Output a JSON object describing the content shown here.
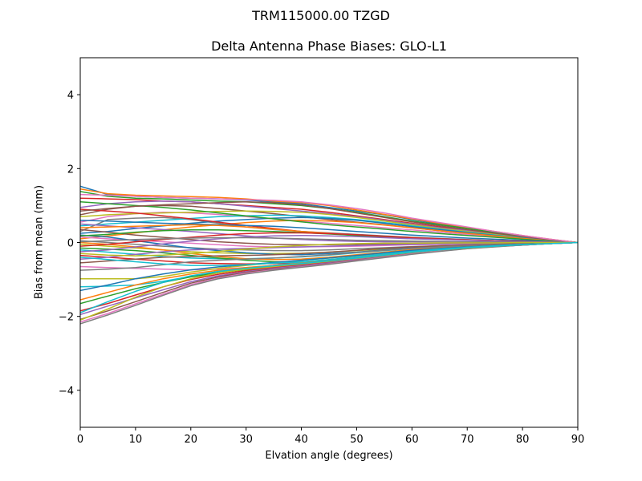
{
  "figure": {
    "suptitle": "TRM115000.00    TZGD"
  },
  "chart_data": {
    "type": "line",
    "title": "Delta Antenna Phase Biases: GLO-L1",
    "suptitle": "TRM115000.00    TZGD",
    "xlabel": "Elvation angle (degrees)",
    "ylabel": "Bias from mean (mm)",
    "xlim": [
      0,
      90
    ],
    "ylim": [
      -5,
      5
    ],
    "xticks": [
      0,
      10,
      20,
      30,
      40,
      50,
      60,
      70,
      80,
      90
    ],
    "yticks": [
      -4,
      -2,
      0,
      2,
      4
    ],
    "ytick_labels": [
      "−4",
      "−2",
      "0",
      "2",
      "4"
    ],
    "grid": false,
    "legend": null,
    "colors": [
      "#1f77b4",
      "#ff7f0e",
      "#2ca02c",
      "#d62728",
      "#9467bd",
      "#8c564b",
      "#e377c2",
      "#7f7f7f",
      "#bcbd22",
      "#17becf"
    ],
    "x": [
      0,
      5,
      10,
      15,
      20,
      25,
      30,
      35,
      40,
      45,
      50,
      55,
      60,
      65,
      70,
      75,
      80,
      85,
      90
    ],
    "series": [
      {
        "name": "s1",
        "values": [
          1.52,
          1.3,
          1.25,
          1.22,
          1.2,
          1.18,
          1.15,
          1.1,
          1.05,
          0.95,
          0.85,
          0.75,
          0.62,
          0.5,
          0.4,
          0.28,
          0.18,
          0.08,
          0.0
        ]
      },
      {
        "name": "s2",
        "values": [
          1.45,
          1.32,
          1.28,
          1.26,
          1.24,
          1.22,
          1.18,
          1.12,
          1.08,
          1.0,
          0.88,
          0.76,
          0.64,
          0.52,
          0.41,
          0.3,
          0.19,
          0.09,
          0.0
        ]
      },
      {
        "name": "s3",
        "values": [
          1.38,
          1.25,
          1.2,
          1.18,
          1.15,
          1.12,
          1.1,
          1.05,
          1.0,
          0.92,
          0.82,
          0.7,
          0.58,
          0.48,
          0.38,
          0.27,
          0.17,
          0.08,
          0.0
        ]
      },
      {
        "name": "s4",
        "values": [
          1.2,
          1.18,
          1.16,
          1.12,
          1.1,
          1.05,
          1.0,
          0.95,
          0.9,
          0.82,
          0.72,
          0.62,
          0.52,
          0.42,
          0.33,
          0.24,
          0.15,
          0.07,
          0.0
        ]
      },
      {
        "name": "s5",
        "values": [
          0.95,
          1.05,
          1.1,
          1.12,
          1.1,
          1.05,
          0.98,
          0.92,
          0.85,
          0.78,
          0.7,
          0.6,
          0.5,
          0.4,
          0.32,
          0.23,
          0.15,
          0.07,
          0.0
        ]
      },
      {
        "name": "s6",
        "values": [
          0.75,
          0.9,
          0.98,
          1.0,
          0.98,
          0.92,
          0.85,
          0.78,
          0.7,
          0.62,
          0.55,
          0.48,
          0.4,
          0.32,
          0.25,
          0.18,
          0.12,
          0.05,
          0.0
        ]
      },
      {
        "name": "s7",
        "values": [
          0.55,
          0.7,
          0.78,
          0.82,
          0.8,
          0.76,
          0.7,
          0.64,
          0.58,
          0.52,
          0.46,
          0.4,
          0.34,
          0.28,
          0.22,
          0.16,
          0.1,
          0.05,
          0.0
        ]
      },
      {
        "name": "s8",
        "values": [
          0.3,
          0.62,
          0.66,
          0.68,
          0.62,
          0.52,
          0.42,
          0.35,
          0.3,
          0.26,
          0.22,
          0.18,
          0.14,
          0.11,
          0.08,
          0.05,
          0.03,
          0.01,
          0.0
        ]
      },
      {
        "name": "s9",
        "values": [
          0.7,
          0.75,
          0.78,
          0.8,
          0.82,
          0.84,
          0.85,
          0.84,
          0.82,
          0.76,
          0.68,
          0.58,
          0.48,
          0.38,
          0.3,
          0.22,
          0.14,
          0.06,
          0.0
        ]
      },
      {
        "name": "s10",
        "values": [
          0.45,
          0.5,
          0.55,
          0.6,
          0.65,
          0.7,
          0.72,
          0.74,
          0.72,
          0.68,
          0.62,
          0.54,
          0.45,
          0.36,
          0.28,
          0.2,
          0.13,
          0.06,
          0.0
        ]
      },
      {
        "name": "s11",
        "values": [
          0.25,
          0.3,
          0.38,
          0.45,
          0.52,
          0.58,
          0.62,
          0.66,
          0.68,
          0.65,
          0.6,
          0.52,
          0.43,
          0.35,
          0.27,
          0.19,
          0.12,
          0.06,
          0.0
        ]
      },
      {
        "name": "s12",
        "values": [
          0.1,
          0.18,
          0.26,
          0.34,
          0.42,
          0.48,
          0.54,
          0.58,
          0.6,
          0.58,
          0.54,
          0.47,
          0.4,
          0.32,
          0.25,
          0.18,
          0.11,
          0.05,
          0.0
        ]
      },
      {
        "name": "s13",
        "values": [
          1.1,
          1.05,
          1.0,
          0.95,
          0.88,
          0.8,
          0.72,
          0.64,
          0.56,
          0.48,
          0.42,
          0.36,
          0.3,
          0.24,
          0.19,
          0.14,
          0.09,
          0.04,
          0.0
        ]
      },
      {
        "name": "s14",
        "values": [
          0.9,
          0.85,
          0.8,
          0.72,
          0.64,
          0.55,
          0.46,
          0.38,
          0.3,
          0.24,
          0.19,
          0.15,
          0.12,
          0.09,
          0.07,
          0.05,
          0.03,
          0.01,
          0.0
        ]
      },
      {
        "name": "s15",
        "values": [
          0.5,
          0.45,
          0.4,
          0.35,
          0.3,
          0.24,
          0.18,
          0.12,
          0.08,
          0.05,
          0.03,
          0.02,
          0.02,
          0.02,
          0.01,
          0.01,
          0.01,
          0.0,
          0.0
        ]
      },
      {
        "name": "s16",
        "values": [
          0.35,
          0.28,
          0.2,
          0.14,
          0.08,
          0.02,
          -0.02,
          -0.05,
          -0.06,
          -0.06,
          -0.05,
          -0.04,
          -0.03,
          -0.02,
          -0.02,
          -0.01,
          -0.01,
          0.0,
          0.0
        ]
      },
      {
        "name": "s17",
        "values": [
          0.15,
          0.1,
          0.06,
          0.02,
          -0.02,
          -0.06,
          -0.1,
          -0.12,
          -0.12,
          -0.11,
          -0.1,
          -0.08,
          -0.06,
          -0.05,
          -0.04,
          -0.03,
          -0.02,
          -0.01,
          0.0
        ]
      },
      {
        "name": "s18",
        "values": [
          0.05,
          0.0,
          -0.05,
          -0.1,
          -0.14,
          -0.18,
          -0.2,
          -0.22,
          -0.22,
          -0.2,
          -0.17,
          -0.14,
          -0.11,
          -0.09,
          -0.07,
          -0.05,
          -0.03,
          -0.01,
          0.0
        ]
      },
      {
        "name": "s19",
        "values": [
          -0.05,
          -0.1,
          -0.15,
          -0.2,
          -0.25,
          -0.28,
          -0.3,
          -0.3,
          -0.29,
          -0.26,
          -0.22,
          -0.18,
          -0.14,
          -0.11,
          -0.08,
          -0.06,
          -0.04,
          -0.02,
          0.0
        ]
      },
      {
        "name": "s20",
        "values": [
          -0.2,
          -0.26,
          -0.32,
          -0.38,
          -0.42,
          -0.44,
          -0.44,
          -0.42,
          -0.39,
          -0.34,
          -0.28,
          -0.22,
          -0.17,
          -0.13,
          -0.1,
          -0.07,
          -0.04,
          -0.02,
          0.0
        ]
      },
      {
        "name": "s21",
        "values": [
          0.2,
          0.15,
          0.05,
          -0.05,
          -0.15,
          -0.22,
          -0.28,
          -0.32,
          -0.33,
          -0.3,
          -0.26,
          -0.2,
          -0.15,
          -0.12,
          -0.09,
          -0.06,
          -0.04,
          -0.02,
          0.0
        ]
      },
      {
        "name": "s22",
        "values": [
          0.0,
          -0.05,
          -0.12,
          -0.2,
          -0.3,
          -0.38,
          -0.44,
          -0.46,
          -0.45,
          -0.4,
          -0.33,
          -0.26,
          -0.19,
          -0.15,
          -0.11,
          -0.08,
          -0.05,
          -0.02,
          0.0
        ]
      },
      {
        "name": "s23",
        "values": [
          -0.15,
          -0.18,
          -0.22,
          -0.28,
          -0.35,
          -0.42,
          -0.48,
          -0.52,
          -0.52,
          -0.48,
          -0.4,
          -0.31,
          -0.23,
          -0.17,
          -0.13,
          -0.09,
          -0.06,
          -0.03,
          0.0
        ]
      },
      {
        "name": "s24",
        "values": [
          -0.35,
          -0.4,
          -0.45,
          -0.5,
          -0.55,
          -0.57,
          -0.58,
          -0.57,
          -0.55,
          -0.5,
          -0.42,
          -0.33,
          -0.25,
          -0.19,
          -0.14,
          -0.1,
          -0.06,
          -0.03,
          0.0
        ]
      },
      {
        "name": "s25",
        "values": [
          -0.45,
          -0.4,
          -0.32,
          -0.25,
          -0.2,
          -0.18,
          -0.16,
          -0.14,
          -0.12,
          -0.1,
          -0.08,
          -0.06,
          -0.05,
          -0.04,
          -0.03,
          -0.02,
          -0.01,
          0.0,
          0.0
        ]
      },
      {
        "name": "s26",
        "values": [
          -0.55,
          -0.5,
          -0.45,
          -0.4,
          -0.38,
          -0.36,
          -0.35,
          -0.33,
          -0.3,
          -0.26,
          -0.21,
          -0.16,
          -0.12,
          -0.09,
          -0.07,
          -0.05,
          -0.03,
          -0.01,
          0.0
        ]
      },
      {
        "name": "s27",
        "values": [
          -0.65,
          -0.68,
          -0.7,
          -0.72,
          -0.74,
          -0.72,
          -0.68,
          -0.62,
          -0.56,
          -0.48,
          -0.4,
          -0.31,
          -0.23,
          -0.17,
          -0.13,
          -0.09,
          -0.06,
          -0.03,
          0.0
        ]
      },
      {
        "name": "s28",
        "values": [
          -0.75,
          -0.72,
          -0.68,
          -0.6,
          -0.52,
          -0.48,
          -0.45,
          -0.42,
          -0.38,
          -0.33,
          -0.27,
          -0.21,
          -0.16,
          -0.12,
          -0.09,
          -0.06,
          -0.04,
          -0.02,
          0.0
        ]
      },
      {
        "name": "s29",
        "values": [
          -0.98,
          -0.98,
          -0.98,
          -0.92,
          -0.8,
          -0.7,
          -0.62,
          -0.55,
          -0.48,
          -0.42,
          -0.36,
          -0.29,
          -0.22,
          -0.16,
          -0.12,
          -0.08,
          -0.05,
          -0.02,
          0.0
        ]
      },
      {
        "name": "s30",
        "values": [
          -1.2,
          -1.18,
          -1.15,
          -1.05,
          -0.92,
          -0.8,
          -0.7,
          -0.62,
          -0.54,
          -0.47,
          -0.4,
          -0.32,
          -0.24,
          -0.18,
          -0.13,
          -0.09,
          -0.06,
          -0.03,
          0.0
        ]
      },
      {
        "name": "s31",
        "values": [
          -1.3,
          -1.15,
          -0.98,
          -0.85,
          -0.74,
          -0.66,
          -0.6,
          -0.54,
          -0.48,
          -0.42,
          -0.35,
          -0.28,
          -0.21,
          -0.16,
          -0.12,
          -0.08,
          -0.05,
          -0.02,
          0.0
        ]
      },
      {
        "name": "s32",
        "values": [
          -1.55,
          -1.35,
          -1.15,
          -0.98,
          -0.85,
          -0.75,
          -0.68,
          -0.62,
          -0.56,
          -0.49,
          -0.41,
          -0.33,
          -0.25,
          -0.19,
          -0.14,
          -0.1,
          -0.06,
          -0.03,
          0.0
        ]
      },
      {
        "name": "s33",
        "values": [
          -1.65,
          -1.45,
          -1.25,
          -1.08,
          -0.93,
          -0.82,
          -0.73,
          -0.66,
          -0.59,
          -0.51,
          -0.43,
          -0.35,
          -0.27,
          -0.2,
          -0.15,
          -0.1,
          -0.06,
          -0.03,
          0.0
        ]
      },
      {
        "name": "s34",
        "values": [
          -1.85,
          -1.65,
          -1.42,
          -1.2,
          -1.0,
          -0.86,
          -0.76,
          -0.68,
          -0.61,
          -0.53,
          -0.45,
          -0.36,
          -0.28,
          -0.21,
          -0.15,
          -0.1,
          -0.07,
          -0.03,
          0.0
        ]
      },
      {
        "name": "s35",
        "values": [
          -1.95,
          -1.72,
          -1.5,
          -1.28,
          -1.06,
          -0.9,
          -0.79,
          -0.7,
          -0.63,
          -0.55,
          -0.46,
          -0.37,
          -0.29,
          -0.22,
          -0.16,
          -0.11,
          -0.07,
          -0.03,
          0.0
        ]
      },
      {
        "name": "s36",
        "values": [
          -2.08,
          -1.85,
          -1.6,
          -1.35,
          -1.1,
          -0.93,
          -0.81,
          -0.72,
          -0.65,
          -0.57,
          -0.48,
          -0.39,
          -0.3,
          -0.22,
          -0.16,
          -0.11,
          -0.07,
          -0.03,
          0.0
        ]
      },
      {
        "name": "s37",
        "values": [
          -2.15,
          -1.92,
          -1.66,
          -1.4,
          -1.14,
          -0.96,
          -0.83,
          -0.74,
          -0.66,
          -0.58,
          -0.49,
          -0.4,
          -0.31,
          -0.23,
          -0.17,
          -0.11,
          -0.07,
          -0.03,
          0.0
        ]
      },
      {
        "name": "s38",
        "values": [
          -2.2,
          -1.96,
          -1.7,
          -1.43,
          -1.17,
          -0.98,
          -0.85,
          -0.75,
          -0.67,
          -0.59,
          -0.5,
          -0.41,
          -0.32,
          -0.24,
          -0.17,
          -0.12,
          -0.07,
          -0.03,
          0.0
        ]
      },
      {
        "name": "s39",
        "values": [
          -2.1,
          -1.8,
          -1.48,
          -1.2,
          -0.98,
          -0.82,
          -0.72,
          -0.65,
          -0.58,
          -0.51,
          -0.43,
          -0.35,
          -0.27,
          -0.2,
          -0.15,
          -0.1,
          -0.06,
          -0.03,
          0.0
        ]
      },
      {
        "name": "s40",
        "values": [
          -1.9,
          -1.6,
          -1.32,
          -1.08,
          -0.9,
          -0.78,
          -0.7,
          -0.63,
          -0.57,
          -0.5,
          -0.42,
          -0.34,
          -0.26,
          -0.2,
          -0.14,
          -0.1,
          -0.06,
          -0.03,
          0.0
        ]
      },
      {
        "name": "s41",
        "values": [
          0.6,
          0.58,
          0.55,
          0.52,
          0.5,
          0.48,
          0.46,
          0.44,
          0.4,
          0.35,
          0.3,
          0.25,
          0.2,
          0.16,
          0.12,
          0.09,
          0.06,
          0.03,
          0.0
        ]
      },
      {
        "name": "s42",
        "values": [
          0.4,
          0.42,
          0.44,
          0.46,
          0.48,
          0.46,
          0.42,
          0.36,
          0.3,
          0.25,
          0.2,
          0.16,
          0.12,
          0.09,
          0.07,
          0.05,
          0.03,
          0.01,
          0.0
        ]
      },
      {
        "name": "s43",
        "values": [
          0.18,
          0.22,
          0.28,
          0.32,
          0.34,
          0.34,
          0.32,
          0.3,
          0.27,
          0.23,
          0.19,
          0.15,
          0.12,
          0.09,
          0.07,
          0.05,
          0.03,
          0.01,
          0.0
        ]
      },
      {
        "name": "s44",
        "values": [
          -0.1,
          -0.05,
          0.02,
          0.08,
          0.14,
          0.2,
          0.24,
          0.26,
          0.26,
          0.24,
          0.21,
          0.17,
          0.13,
          0.1,
          0.07,
          0.05,
          0.03,
          0.01,
          0.0
        ]
      },
      {
        "name": "s45",
        "values": [
          -0.25,
          -0.2,
          -0.12,
          -0.04,
          0.04,
          0.1,
          0.15,
          0.18,
          0.19,
          0.18,
          0.16,
          0.13,
          0.1,
          0.08,
          0.06,
          0.04,
          0.02,
          0.01,
          0.0
        ]
      },
      {
        "name": "s46",
        "values": [
          0.85,
          0.92,
          0.98,
          1.02,
          1.05,
          1.08,
          1.1,
          1.08,
          1.02,
          0.92,
          0.8,
          0.68,
          0.56,
          0.45,
          0.35,
          0.25,
          0.16,
          0.08,
          0.0
        ]
      },
      {
        "name": "s47",
        "values": [
          1.3,
          1.28,
          1.25,
          1.22,
          1.2,
          1.18,
          1.16,
          1.14,
          1.1,
          1.02,
          0.92,
          0.8,
          0.66,
          0.54,
          0.42,
          0.3,
          0.19,
          0.09,
          0.0
        ]
      },
      {
        "name": "s48",
        "values": [
          0.02,
          0.05,
          0.08,
          0.1,
          0.12,
          0.13,
          0.13,
          0.12,
          0.1,
          0.08,
          0.06,
          0.05,
          0.04,
          0.03,
          0.02,
          0.01,
          0.01,
          0.0,
          0.0
        ]
      },
      {
        "name": "s49",
        "values": [
          -0.3,
          -0.34,
          -0.36,
          -0.34,
          -0.3,
          -0.24,
          -0.18,
          -0.12,
          -0.08,
          -0.05,
          -0.03,
          -0.02,
          -0.02,
          -0.01,
          -0.01,
          -0.01,
          0.0,
          0.0,
          0.0
        ]
      },
      {
        "name": "s50",
        "values": [
          -0.4,
          -0.46,
          -0.52,
          -0.58,
          -0.62,
          -0.62,
          -0.6,
          -0.56,
          -0.52,
          -0.46,
          -0.39,
          -0.31,
          -0.24,
          -0.18,
          -0.13,
          -0.09,
          -0.06,
          -0.03,
          0.0
        ]
      }
    ]
  }
}
